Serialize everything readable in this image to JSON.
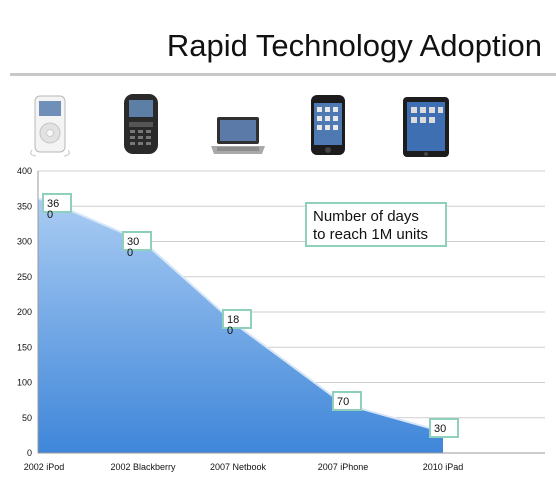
{
  "page": {
    "title": "Rapid Technology Adoption"
  },
  "devices": [
    {
      "icon": "ipod-icon"
    },
    {
      "icon": "blackberry-icon"
    },
    {
      "icon": "netbook-icon"
    },
    {
      "icon": "iphone-icon"
    },
    {
      "icon": "ipad-icon"
    }
  ],
  "chart_data": {
    "type": "area",
    "categories": [
      "2002 iPod",
      "2002 Blackberry",
      "2007 Netbook",
      "2007 iPhone",
      "2010 iPad"
    ],
    "values": [
      360,
      300,
      180,
      70,
      30
    ],
    "data_labels": [
      [
        "36",
        "0"
      ],
      [
        "30",
        "0"
      ],
      [
        "18",
        "0"
      ],
      [
        "70"
      ],
      [
        "30"
      ]
    ],
    "annotation": [
      "Number of days",
      "to reach 1M units"
    ],
    "ylim": [
      0,
      400
    ],
    "yticks": [
      "0",
      "50",
      "100",
      "150",
      "200",
      "250",
      "300",
      "350",
      "400"
    ],
    "grid": true,
    "colors": {
      "area_top": "#a9ccf3",
      "area_bottom": "#3f86d9",
      "label_border": "#8fd0bd",
      "grid": "#cfcfcf"
    }
  }
}
